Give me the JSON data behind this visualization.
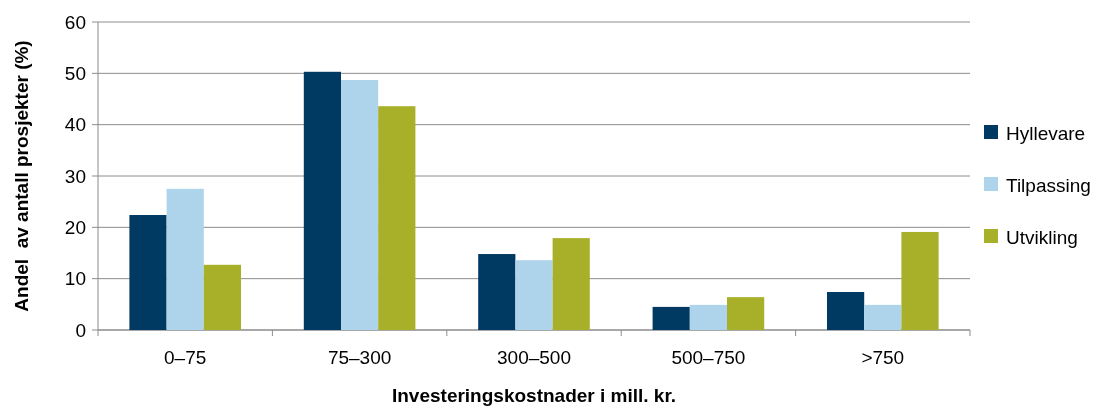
{
  "chart_data": {
    "type": "bar",
    "xlabel": "Investeringskostnader i mill. kr.",
    "ylabel": "Andel  av antall prosjekter (%)",
    "categories": [
      "0–75",
      "75–300",
      "300–500",
      "500–750",
      ">750"
    ],
    "series": [
      {
        "name": "Hyllevare",
        "color": "#003a63",
        "values": [
          22.4,
          50.3,
          14.8,
          4.5,
          7.4
        ]
      },
      {
        "name": "Tilpassing",
        "color": "#aed4ec",
        "values": [
          27.5,
          48.7,
          13.6,
          4.9,
          4.9
        ]
      },
      {
        "name": "Utvikling",
        "color": "#a8b02a",
        "values": [
          12.7,
          43.6,
          17.9,
          6.4,
          19.1
        ]
      }
    ],
    "ylim": [
      0,
      60
    ],
    "yticks": [
      0,
      10,
      20,
      30,
      40,
      50,
      60
    ],
    "grid": "y",
    "legend": "right"
  }
}
